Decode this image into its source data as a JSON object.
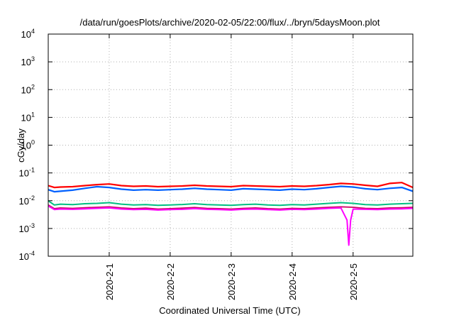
{
  "chart_data": {
    "type": "line",
    "title": "/data/run/goesPlots/archive/2020-02-05/22:00/flux/../bryn/5daysMoon.plot",
    "xlabel": "Coordinated Universal Time (UTC)",
    "ylabel": "cGy/day",
    "yscale": "log",
    "ylim": [
      0.0001,
      10000
    ],
    "xlim": [
      -1.0,
      4.98
    ],
    "grid": true,
    "legend": "none",
    "y_ticks": [
      {
        "value": 0.0001,
        "base": "10",
        "exp": "-4"
      },
      {
        "value": 0.001,
        "base": "10",
        "exp": "-3"
      },
      {
        "value": 0.01,
        "base": "10",
        "exp": "-2"
      },
      {
        "value": 0.1,
        "base": "10",
        "exp": "-1"
      },
      {
        "value": 1,
        "base": "10",
        "exp": "0"
      },
      {
        "value": 10,
        "base": "10",
        "exp": "1"
      },
      {
        "value": 100,
        "base": "10",
        "exp": "2"
      },
      {
        "value": 1000,
        "base": "10",
        "exp": "3"
      },
      {
        "value": 10000,
        "base": "10",
        "exp": "4"
      }
    ],
    "x_ticks": [
      {
        "value": 0,
        "label": "2020-2-1"
      },
      {
        "value": 1,
        "label": "2020-2-2"
      },
      {
        "value": 2,
        "label": "2020-2-3"
      },
      {
        "value": 3,
        "label": "2020-2-4"
      },
      {
        "value": 4,
        "label": "2020-2-5"
      }
    ],
    "series": [
      {
        "color": "#ff0000",
        "width": 2.2,
        "x": [
          -1.0,
          -0.9,
          -0.8,
          -0.6,
          -0.4,
          -0.2,
          0.0,
          0.2,
          0.4,
          0.6,
          0.8,
          1.0,
          1.2,
          1.4,
          1.6,
          1.8,
          2.0,
          2.2,
          2.4,
          2.6,
          2.8,
          3.0,
          3.2,
          3.4,
          3.6,
          3.8,
          4.0,
          4.2,
          4.4,
          4.6,
          4.8,
          4.98
        ],
        "y": [
          0.035,
          0.03,
          0.031,
          0.032,
          0.035,
          0.038,
          0.04,
          0.035,
          0.033,
          0.034,
          0.032,
          0.033,
          0.034,
          0.036,
          0.034,
          0.033,
          0.032,
          0.035,
          0.034,
          0.033,
          0.032,
          0.034,
          0.033,
          0.035,
          0.038,
          0.042,
          0.04,
          0.036,
          0.033,
          0.042,
          0.045,
          0.03
        ]
      },
      {
        "color": "#0060ff",
        "width": 2.2,
        "x": [
          -1.0,
          -0.9,
          -0.8,
          -0.6,
          -0.4,
          -0.2,
          0.0,
          0.2,
          0.4,
          0.6,
          0.8,
          1.0,
          1.2,
          1.4,
          1.6,
          1.8,
          2.0,
          2.2,
          2.4,
          2.6,
          2.8,
          3.0,
          3.2,
          3.4,
          3.6,
          3.8,
          4.0,
          4.2,
          4.4,
          4.6,
          4.8,
          4.98
        ],
        "y": [
          0.025,
          0.021,
          0.022,
          0.024,
          0.028,
          0.032,
          0.03,
          0.026,
          0.024,
          0.025,
          0.024,
          0.025,
          0.026,
          0.028,
          0.026,
          0.025,
          0.024,
          0.027,
          0.026,
          0.025,
          0.024,
          0.026,
          0.025,
          0.027,
          0.03,
          0.033,
          0.031,
          0.027,
          0.025,
          0.028,
          0.03,
          0.022
        ]
      },
      {
        "color": "#00c080",
        "width": 2.0,
        "x": [
          -1.0,
          -0.9,
          -0.8,
          -0.6,
          -0.4,
          -0.2,
          0.0,
          0.2,
          0.4,
          0.6,
          0.8,
          1.0,
          1.2,
          1.4,
          1.6,
          1.8,
          2.0,
          2.2,
          2.4,
          2.6,
          2.8,
          3.0,
          3.2,
          3.4,
          3.6,
          3.8,
          4.0,
          4.2,
          4.4,
          4.6,
          4.8,
          4.98
        ],
        "y": [
          0.01,
          0.007,
          0.0075,
          0.0072,
          0.0078,
          0.008,
          0.0085,
          0.0075,
          0.007,
          0.0072,
          0.0068,
          0.007,
          0.0073,
          0.0078,
          0.0072,
          0.007,
          0.0068,
          0.0072,
          0.0075,
          0.007,
          0.0068,
          0.0072,
          0.007,
          0.0075,
          0.008,
          0.0085,
          0.008,
          0.0072,
          0.007,
          0.0075,
          0.0078,
          0.008
        ]
      },
      {
        "color": "#cc0060",
        "width": 1.8,
        "x": [
          -1.0,
          -0.9,
          -0.8,
          -0.6,
          -0.4,
          -0.2,
          0.0,
          0.2,
          0.4,
          0.6,
          0.8,
          1.0,
          1.2,
          1.4,
          1.6,
          1.8,
          2.0,
          2.2,
          2.4,
          2.6,
          2.8,
          3.0,
          3.2,
          3.4,
          3.6,
          3.8,
          4.0,
          4.2,
          4.4,
          4.6,
          4.8,
          4.98
        ],
        "y": [
          0.007,
          0.0052,
          0.0055,
          0.0053,
          0.0056,
          0.0058,
          0.006,
          0.0055,
          0.0052,
          0.0054,
          0.005,
          0.0052,
          0.0054,
          0.0057,
          0.0053,
          0.0052,
          0.005,
          0.0053,
          0.0055,
          0.0052,
          0.005,
          0.0053,
          0.0052,
          0.0055,
          0.0058,
          0.006,
          0.0058,
          0.0053,
          0.0052,
          0.0055,
          0.0056,
          0.0058
        ]
      },
      {
        "color": "#ff00ff",
        "width": 2.0,
        "x": [
          -1.0,
          -0.9,
          -0.8,
          -0.6,
          -0.4,
          -0.2,
          0.0,
          0.2,
          0.4,
          0.6,
          0.8,
          1.0,
          1.2,
          1.4,
          1.6,
          1.8,
          2.0,
          2.2,
          2.4,
          2.6,
          2.8,
          3.0,
          3.2,
          3.4,
          3.6,
          3.8,
          3.9,
          3.93,
          3.96,
          4.0,
          4.2,
          4.4,
          4.6,
          4.8,
          4.98
        ],
        "y": [
          0.0065,
          0.0048,
          0.005,
          0.0049,
          0.0051,
          0.0053,
          0.0055,
          0.005,
          0.0048,
          0.0049,
          0.0046,
          0.0048,
          0.0049,
          0.0052,
          0.0049,
          0.0048,
          0.0046,
          0.0049,
          0.005,
          0.0048,
          0.0046,
          0.0049,
          0.0048,
          0.005,
          0.0053,
          0.0055,
          0.002,
          0.00025,
          0.002,
          0.005,
          0.0049,
          0.0048,
          0.005,
          0.0051,
          0.0053
        ]
      }
    ]
  }
}
